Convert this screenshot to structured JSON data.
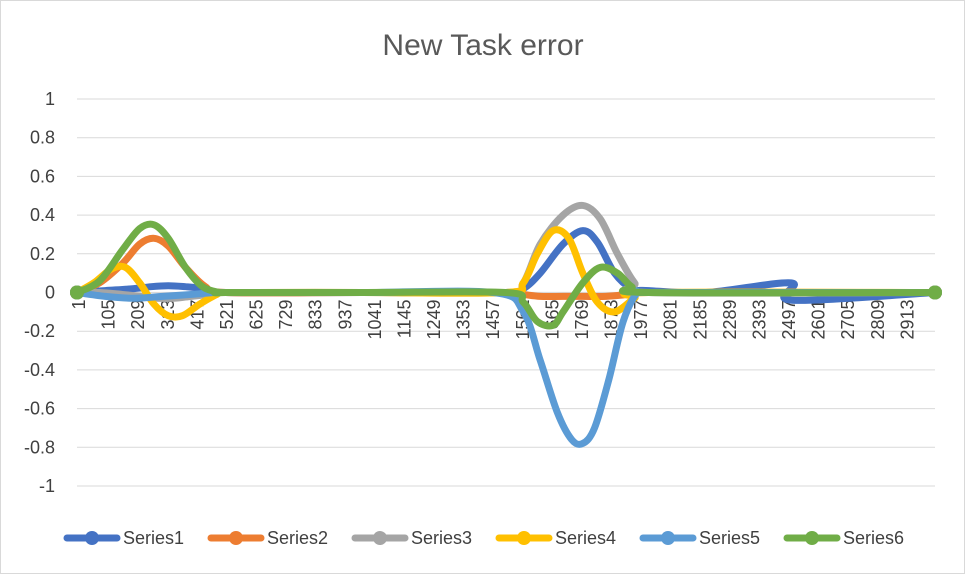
{
  "chart_data": {
    "type": "line",
    "title": "New Task error",
    "xlabel": "",
    "ylabel": "",
    "ylim": [
      -1,
      1
    ],
    "yticks": [
      "1",
      "0.8",
      "0.6",
      "0.4",
      "0.2",
      "0",
      "-0.2",
      "-0.4",
      "-0.6",
      "-0.8",
      "-1"
    ],
    "ytick_values": [
      1,
      0.8,
      0.6,
      0.4,
      0.2,
      0,
      -0.2,
      -0.4,
      -0.6,
      -0.8,
      -1
    ],
    "xlim": [
      1,
      3000
    ],
    "xticks": [
      "1",
      "105",
      "209",
      "313",
      "417",
      "521",
      "625",
      "729",
      "833",
      "937",
      "1041",
      "1145",
      "1249",
      "1353",
      "1457",
      "1561",
      "1665",
      "1769",
      "1873",
      "1977",
      "2081",
      "2185",
      "2289",
      "2393",
      "2497",
      "2601",
      "2705",
      "2809",
      "2913"
    ],
    "grid": true,
    "legend_position": "bottom",
    "series": [
      {
        "name": "Series1",
        "color": "#4472c4",
        "x": [
          1,
          100,
          200,
          260,
          320,
          380,
          450,
          521,
          1000,
          1500,
          1561,
          1620,
          1700,
          1769,
          1820,
          1880,
          1940,
          2000,
          2200,
          2497,
          2500,
          3000
        ],
        "y": [
          0,
          0.01,
          0.02,
          0.03,
          0.035,
          0.03,
          0.02,
          0,
          0,
          0,
          0.02,
          0.1,
          0.25,
          0.32,
          0.26,
          0.1,
          0.02,
          0.01,
          0,
          0.05,
          -0.04,
          0
        ]
      },
      {
        "name": "Series2",
        "color": "#ed7d31",
        "x": [
          1,
          80,
          160,
          220,
          270,
          320,
          380,
          450,
          521,
          1000,
          1500,
          1561,
          1620,
          1700,
          1769,
          1850,
          1930,
          2000,
          3000
        ],
        "y": [
          0,
          0.05,
          0.15,
          0.25,
          0.28,
          0.24,
          0.13,
          0.03,
          0,
          0,
          0,
          -0.01,
          -0.02,
          -0.02,
          -0.02,
          -0.02,
          -0.01,
          0,
          0
        ]
      },
      {
        "name": "Series3",
        "color": "#a5a5a5",
        "x": [
          1,
          80,
          160,
          220,
          280,
          340,
          400,
          460,
          521,
          1000,
          1500,
          1561,
          1620,
          1700,
          1769,
          1830,
          1890,
          1950,
          2000,
          3000
        ],
        "y": [
          0,
          0,
          -0.01,
          -0.02,
          -0.03,
          -0.03,
          -0.02,
          -0.01,
          0,
          0,
          0,
          0.05,
          0.25,
          0.4,
          0.45,
          0.38,
          0.2,
          0.05,
          0,
          0
        ]
      },
      {
        "name": "Series4",
        "color": "#ffc000",
        "x": [
          1,
          60,
          120,
          170,
          220,
          270,
          320,
          370,
          430,
          490,
          521,
          1000,
          1500,
          1561,
          1610,
          1665,
          1720,
          1769,
          1820,
          1880,
          1950,
          2000,
          3000
        ],
        "y": [
          0,
          0.05,
          0.12,
          0.13,
          0.05,
          -0.06,
          -0.12,
          -0.12,
          -0.06,
          -0.01,
          0,
          0,
          0,
          0.05,
          0.2,
          0.32,
          0.28,
          0.1,
          -0.05,
          -0.1,
          -0.03,
          0,
          0
        ]
      },
      {
        "name": "Series5",
        "color": "#5b9bd5",
        "x": [
          1,
          100,
          200,
          300,
          400,
          480,
          521,
          1000,
          1457,
          1561,
          1620,
          1680,
          1730,
          1769,
          1810,
          1860,
          1910,
          1960,
          2000,
          3000
        ],
        "y": [
          0,
          -0.02,
          -0.03,
          -0.02,
          -0.01,
          0,
          0,
          0,
          0,
          -0.1,
          -0.35,
          -0.62,
          -0.76,
          -0.78,
          -0.7,
          -0.45,
          -0.15,
          0,
          0,
          0
        ]
      },
      {
        "name": "Series6",
        "color": "#70ad47",
        "x": [
          1,
          80,
          160,
          220,
          270,
          320,
          380,
          440,
          500,
          521,
          1000,
          1500,
          1561,
          1610,
          1665,
          1700,
          1769,
          1830,
          1890,
          1940,
          2000,
          3000
        ],
        "y": [
          0,
          0.06,
          0.22,
          0.33,
          0.35,
          0.28,
          0.13,
          0.03,
          0,
          0,
          0,
          0,
          -0.05,
          -0.15,
          -0.17,
          -0.1,
          0.05,
          0.13,
          0.1,
          0.03,
          0,
          0
        ]
      }
    ]
  }
}
